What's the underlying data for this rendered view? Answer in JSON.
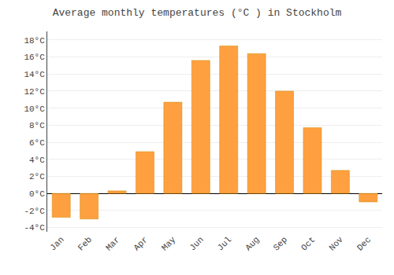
{
  "chart_data": {
    "type": "bar",
    "title": "Average monthly temperatures (°C ) in Stockholm",
    "categories": [
      "Jan",
      "Feb",
      "Mar",
      "Apr",
      "May",
      "Jun",
      "Jul",
      "Aug",
      "Sep",
      "Oct",
      "Nov",
      "Dec"
    ],
    "values": [
      -2.8,
      -3.0,
      0.3,
      4.9,
      10.7,
      15.6,
      17.3,
      16.4,
      12.0,
      7.7,
      2.7,
      -1.0
    ],
    "color": "#FFA040",
    "ylim": [
      -4.5,
      19
    ],
    "yticks": [
      {
        "value": -4,
        "label": "-4°C"
      },
      {
        "value": -2,
        "label": "-2°C"
      },
      {
        "value": 0,
        "label": "0°C"
      },
      {
        "value": 2,
        "label": "2°C"
      },
      {
        "value": 4,
        "label": "4°C"
      },
      {
        "value": 6,
        "label": "6°C"
      },
      {
        "value": 8,
        "label": "8°C"
      },
      {
        "value": 10,
        "label": "10°C"
      },
      {
        "value": 12,
        "label": "12°C"
      },
      {
        "value": 14,
        "label": "14°C"
      },
      {
        "value": 16,
        "label": "16°C"
      },
      {
        "value": 18,
        "label": "18°C"
      }
    ],
    "grid": true
  }
}
